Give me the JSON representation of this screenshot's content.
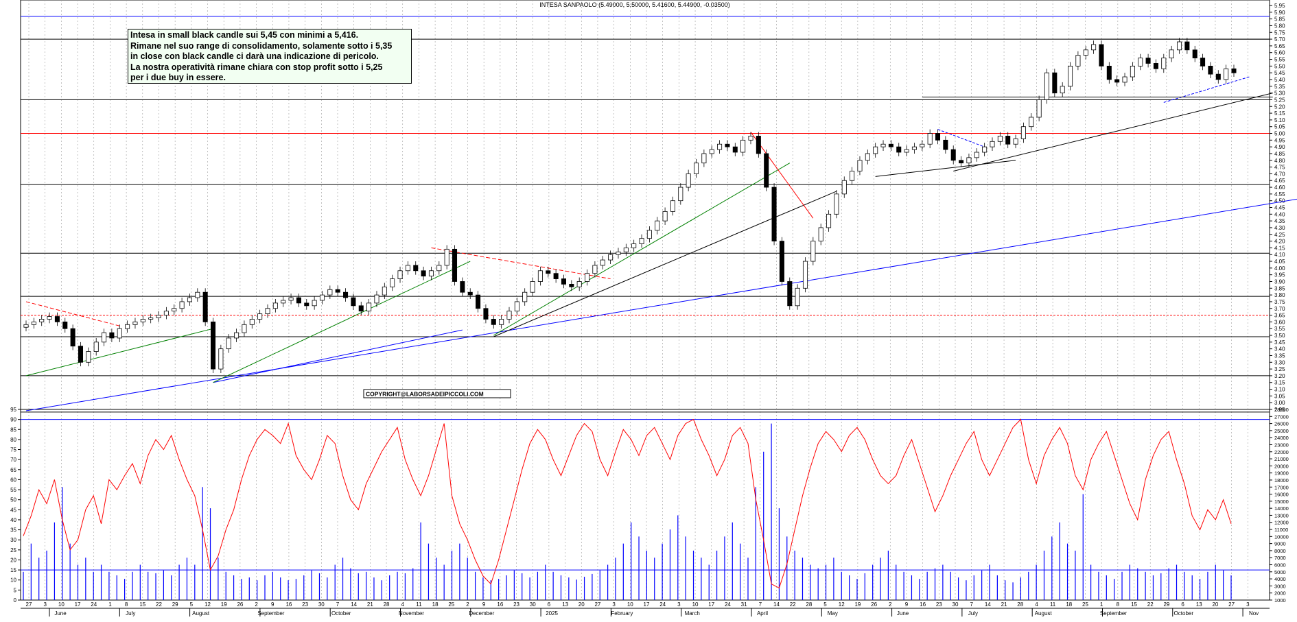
{
  "chart_data": {
    "type": "candlestick+indicator",
    "title": "INTESA SANPAOLO (5.49000, 5.50000, 5.41600, 5.44900, -0.03500)",
    "annotation_lines": [
      "Intesa in small black candle sui 5,45 con minimi a 5,416.",
      "Rimane nel suo range di consolidamento, solamente sotto i 5,35",
      "in close con black candle ci darà una indicazione di pericolo.",
      "La nostra operatività rimane chiara con stop profit sotto i 5,25",
      "per i due buy in essere."
    ],
    "copyright": "COPYRIGHT@LABORSADEIPICCOLI.COM",
    "price_axis": {
      "min": 2.95,
      "max": 5.95,
      "step": 0.05
    },
    "oscillator_axis": {
      "min": 0,
      "max": 95,
      "step": 5
    },
    "volume_axis": {
      "min": 1000,
      "max": 28000
    },
    "months": [
      "June",
      "July",
      "August",
      "September",
      "October",
      "November",
      "December",
      "2025",
      "February",
      "March",
      "April",
      "May",
      "June",
      "July",
      "August",
      "September",
      "October",
      "Nov"
    ],
    "day_ticks": [
      "27",
      "3",
      "10",
      "17",
      "24",
      "1",
      "8",
      "15",
      "22",
      "29",
      "5",
      "12",
      "19",
      "26",
      "2",
      "9",
      "16",
      "23",
      "30",
      "7",
      "14",
      "21",
      "28",
      "4",
      "11",
      "18",
      "25",
      "2",
      "9",
      "16",
      "23",
      "30",
      "6",
      "13",
      "20",
      "27",
      "3",
      "10",
      "17",
      "24",
      "3",
      "10",
      "17",
      "24",
      "31",
      "7",
      "14",
      "22",
      "28",
      "5",
      "12",
      "19",
      "26",
      "2",
      "9",
      "16",
      "23",
      "30",
      "7",
      "14",
      "21",
      "28",
      "4",
      "11",
      "18",
      "25",
      "1",
      "8",
      "15",
      "22",
      "29",
      "6",
      "13",
      "20",
      "27",
      "3"
    ],
    "closes": [
      3.58,
      3.6,
      3.62,
      3.64,
      3.6,
      3.55,
      3.42,
      3.3,
      3.38,
      3.45,
      3.52,
      3.48,
      3.55,
      3.58,
      3.6,
      3.62,
      3.63,
      3.65,
      3.68,
      3.7,
      3.75,
      3.78,
      3.82,
      3.6,
      3.25,
      3.4,
      3.48,
      3.52,
      3.58,
      3.62,
      3.66,
      3.7,
      3.74,
      3.76,
      3.78,
      3.74,
      3.72,
      3.76,
      3.8,
      3.84,
      3.82,
      3.78,
      3.72,
      3.68,
      3.74,
      3.8,
      3.86,
      3.92,
      3.98,
      4.02,
      3.98,
      3.94,
      3.98,
      4.02,
      4.14,
      3.9,
      3.82,
      3.8,
      3.7,
      3.62,
      3.58,
      3.62,
      3.68,
      3.75,
      3.82,
      3.9,
      3.98,
      3.96,
      3.92,
      3.88,
      3.86,
      3.9,
      3.96,
      4.02,
      4.06,
      4.1,
      4.12,
      4.15,
      4.18,
      4.22,
      4.28,
      4.35,
      4.42,
      4.5,
      4.6,
      4.7,
      4.78,
      4.85,
      4.88,
      4.92,
      4.9,
      4.86,
      4.95,
      4.98,
      4.85,
      4.6,
      4.2,
      3.9,
      3.72,
      3.85,
      4.05,
      4.2,
      4.3,
      4.4,
      4.55,
      4.65,
      4.72,
      4.8,
      4.85,
      4.9,
      4.92,
      4.9,
      4.86,
      4.88,
      4.9,
      4.92,
      5.0,
      4.95,
      4.88,
      4.8,
      4.78,
      4.82,
      4.86,
      4.9,
      4.94,
      4.98,
      4.92,
      4.96,
      5.05,
      5.12,
      5.25,
      5.45,
      5.3,
      5.35,
      5.5,
      5.58,
      5.62,
      5.66,
      5.5,
      5.4,
      5.38,
      5.42,
      5.5,
      5.56,
      5.52,
      5.48,
      5.56,
      5.62,
      5.68,
      5.62,
      5.56,
      5.5,
      5.44,
      5.4,
      5.48,
      5.45
    ],
    "osc_values": [
      32,
      42,
      55,
      48,
      60,
      40,
      25,
      30,
      45,
      52,
      38,
      60,
      55,
      62,
      68,
      58,
      72,
      80,
      75,
      82,
      70,
      60,
      52,
      35,
      15,
      22,
      35,
      45,
      60,
      72,
      80,
      85,
      82,
      78,
      88,
      72,
      65,
      60,
      70,
      82,
      78,
      62,
      50,
      45,
      58,
      66,
      74,
      80,
      86,
      70,
      60,
      52,
      62,
      75,
      88,
      52,
      38,
      30,
      20,
      12,
      8,
      20,
      35,
      50,
      65,
      78,
      85,
      80,
      70,
      62,
      72,
      82,
      88,
      84,
      70,
      62,
      74,
      85,
      80,
      72,
      82,
      86,
      78,
      70,
      82,
      88,
      90,
      80,
      72,
      62,
      70,
      82,
      86,
      78,
      50,
      30,
      8,
      6,
      18,
      35,
      52,
      66,
      78,
      84,
      80,
      74,
      82,
      86,
      80,
      70,
      62,
      58,
      62,
      72,
      80,
      68,
      56,
      44,
      52,
      62,
      70,
      78,
      84,
      70,
      62,
      70,
      78,
      86,
      90,
      70,
      58,
      72,
      80,
      86,
      78,
      62,
      55,
      70,
      78,
      84,
      72,
      60,
      48,
      40,
      60,
      72,
      80,
      84,
      70,
      58,
      42,
      35,
      45,
      40,
      50,
      38
    ],
    "volumes": [
      5000,
      9000,
      7000,
      8000,
      12000,
      17000,
      9000,
      6000,
      7000,
      5000,
      6000,
      5000,
      4500,
      4000,
      5000,
      6000,
      5000,
      4800,
      5200,
      4500,
      6000,
      7000,
      6000,
      17000,
      14000,
      7000,
      5000,
      4500,
      4000,
      4200,
      3800,
      4500,
      5000,
      4200,
      3800,
      4000,
      4500,
      5200,
      4800,
      4200,
      6000,
      7000,
      5500,
      4800,
      5000,
      4200,
      3800,
      4500,
      5000,
      4800,
      5500,
      12000,
      9000,
      7000,
      6000,
      8000,
      9000,
      7000,
      5000,
      4200,
      3800,
      4000,
      4500,
      5200,
      4800,
      4200,
      5000,
      6000,
      5000,
      4500,
      4200,
      3900,
      4300,
      4700,
      5200,
      6000,
      7000,
      9000,
      12000,
      10000,
      8000,
      7000,
      9000,
      11000,
      13000,
      10000,
      8000,
      7000,
      6000,
      8000,
      10000,
      12000,
      9000,
      7000,
      17000,
      22000,
      26000,
      14000,
      10000,
      8000,
      7000,
      6000,
      5500,
      6000,
      7000,
      5000,
      4500,
      4000,
      4800,
      6000,
      7000,
      8000,
      6000,
      5000,
      4500,
      4000,
      5000,
      5500,
      6000,
      5000,
      4200,
      3800,
      4500,
      5200,
      6000,
      4500,
      3800,
      3500,
      4200,
      5000,
      6000,
      8000,
      10000,
      12000,
      9000,
      8000,
      16000,
      6000,
      5000,
      4500,
      4000,
      5000,
      6000,
      5500,
      5000,
      4500,
      4800,
      5500,
      6000,
      5000,
      4500,
      4000,
      5000,
      6000,
      5200,
      4500
    ],
    "horizontal_levels": [
      {
        "name": "resistance-top",
        "value": 5.7,
        "color": "#000000"
      },
      {
        "name": "support-5.25",
        "value": 5.25,
        "color": "#000000"
      },
      {
        "name": "resistance-5.00",
        "value": 5.0,
        "color": "#ff0000"
      },
      {
        "name": "support-4.62",
        "value": 4.62,
        "color": "#000000"
      },
      {
        "name": "level-4.11",
        "value": 4.11,
        "color": "#000000"
      },
      {
        "name": "level-3.79",
        "value": 3.79,
        "color": "#000000"
      },
      {
        "name": "level-3.65",
        "value": 3.65,
        "color": "#ff0000"
      },
      {
        "name": "level-3.49",
        "value": 3.49,
        "color": "#000000"
      },
      {
        "name": "level-3.20",
        "value": 3.2,
        "color": "#000000"
      },
      {
        "name": "level-2.93",
        "value": 2.93,
        "color": "#000000"
      },
      {
        "name": "level-5.87",
        "value": 5.87,
        "color": "#0000ff"
      }
    ],
    "grid": true,
    "colors": {
      "oscillator": "#ff0000",
      "volume": "#0000ff",
      "trend_up": "#008000",
      "trend_long": "#0000ff",
      "resistance": "#ff0000"
    }
  }
}
